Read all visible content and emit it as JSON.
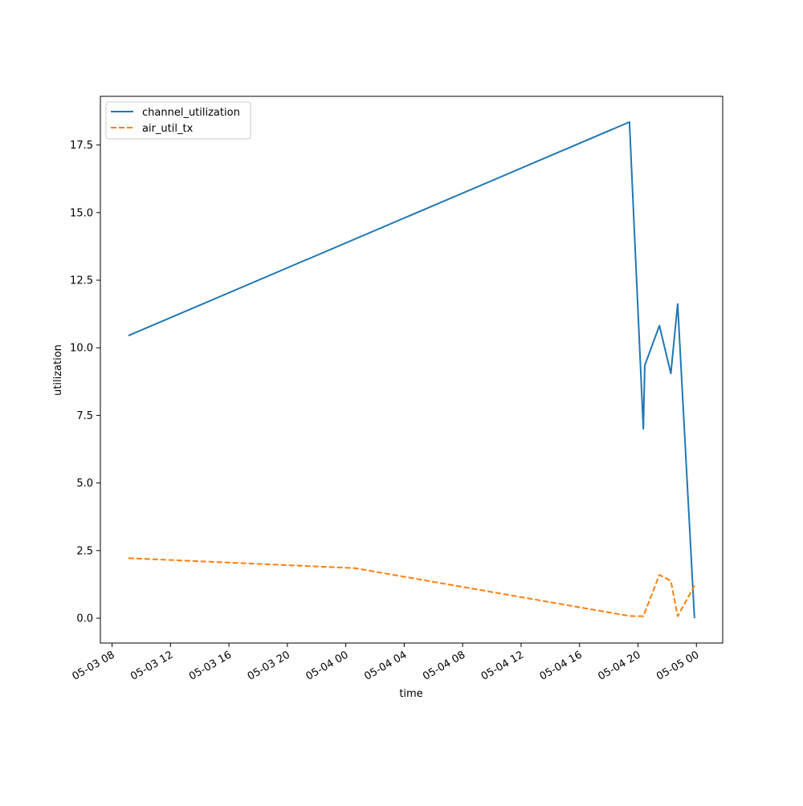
{
  "chart_data": {
    "type": "line",
    "title": "",
    "xlabel": "time",
    "ylabel": "utilization",
    "x_is_time": true,
    "xlim": [
      "2023-05-03T07:12",
      "2023-05-05T01:48"
    ],
    "ylim": [
      -0.92,
      19.3
    ],
    "xticks": [
      {
        "value": "2023-05-03T08:00",
        "label": "05-03 08"
      },
      {
        "value": "2023-05-03T12:00",
        "label": "05-03 12"
      },
      {
        "value": "2023-05-03T16:00",
        "label": "05-03 16"
      },
      {
        "value": "2023-05-03T20:00",
        "label": "05-03 20"
      },
      {
        "value": "2023-05-04T00:00",
        "label": "05-04 00"
      },
      {
        "value": "2023-05-04T04:00",
        "label": "05-04 04"
      },
      {
        "value": "2023-05-04T08:00",
        "label": "05-04 08"
      },
      {
        "value": "2023-05-04T12:00",
        "label": "05-04 12"
      },
      {
        "value": "2023-05-04T16:00",
        "label": "05-04 16"
      },
      {
        "value": "2023-05-04T20:00",
        "label": "05-04 20"
      },
      {
        "value": "2023-05-05T00:00",
        "label": "05-05 00"
      }
    ],
    "yticks": [
      {
        "value": 0.0,
        "label": "0.0"
      },
      {
        "value": 2.5,
        "label": "2.5"
      },
      {
        "value": 5.0,
        "label": "5.0"
      },
      {
        "value": 7.5,
        "label": "7.5"
      },
      {
        "value": 10.0,
        "label": "10.0"
      },
      {
        "value": 12.5,
        "label": "12.5"
      },
      {
        "value": 15.0,
        "label": "15.0"
      },
      {
        "value": 17.5,
        "label": "17.5"
      }
    ],
    "grid": false,
    "legend_position": "top-left",
    "series": [
      {
        "name": "channel_utilization",
        "color": "#1f77b4",
        "dash": "solid",
        "points": [
          {
            "x": "2023-05-03T09:07",
            "y": 10.45
          },
          {
            "x": "2023-05-04T19:25",
            "y": 18.35
          },
          {
            "x": "2023-05-04T20:22",
            "y": 7.0
          },
          {
            "x": "2023-05-04T20:28",
            "y": 9.35
          },
          {
            "x": "2023-05-04T21:28",
            "y": 10.82
          },
          {
            "x": "2023-05-04T22:15",
            "y": 9.05
          },
          {
            "x": "2023-05-04T22:43",
            "y": 11.62
          },
          {
            "x": "2023-05-04T23:52",
            "y": 0.0
          }
        ]
      },
      {
        "name": "air_util_tx",
        "color": "#ff7f0e",
        "dash": "dashed",
        "points": [
          {
            "x": "2023-05-03T09:07",
            "y": 2.22
          },
          {
            "x": "2023-05-04T00:37",
            "y": 1.85
          },
          {
            "x": "2023-05-04T19:25",
            "y": 0.08
          },
          {
            "x": "2023-05-04T20:22",
            "y": 0.07
          },
          {
            "x": "2023-05-04T21:28",
            "y": 1.6
          },
          {
            "x": "2023-05-04T22:15",
            "y": 1.38
          },
          {
            "x": "2023-05-04T22:43",
            "y": 0.07
          },
          {
            "x": "2023-05-04T23:52",
            "y": 1.2
          }
        ]
      }
    ]
  }
}
